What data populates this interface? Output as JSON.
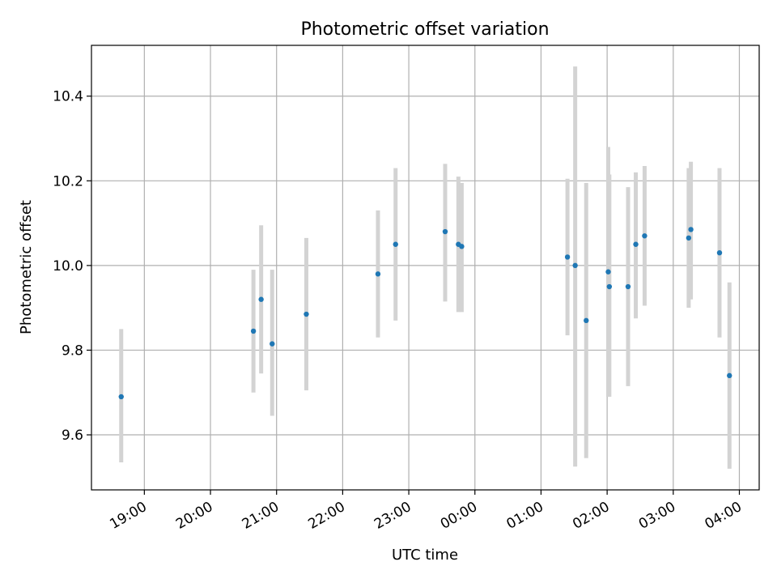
{
  "colors": {
    "point": "#1f77b4",
    "errorbar": "#d3d3d3",
    "grid": "#b0b0b0",
    "axis": "#000000"
  },
  "chart_data": {
    "type": "scatter",
    "title": "Photometric offset variation",
    "xlabel": "UTC time",
    "ylabel": "Photometric offset",
    "grid": true,
    "legend": "none",
    "x_axis": {
      "kind": "time",
      "min": "18:12",
      "max": "04:18",
      "ticks": [
        "19:00",
        "20:00",
        "21:00",
        "22:00",
        "23:00",
        "00:00",
        "01:00",
        "02:00",
        "03:00",
        "04:00"
      ]
    },
    "y_axis": {
      "min": 9.47,
      "max": 10.52,
      "ticks": [
        "9.6",
        "9.8",
        "10.0",
        "10.2",
        "10.4"
      ]
    },
    "points": [
      {
        "t": "18:39",
        "y": 9.69,
        "lo": 9.535,
        "hi": 9.85
      },
      {
        "t": "20:39",
        "y": 9.845,
        "lo": 9.7,
        "hi": 9.99
      },
      {
        "t": "20:46",
        "y": 9.92,
        "lo": 9.745,
        "hi": 10.095
      },
      {
        "t": "20:56",
        "y": 9.815,
        "lo": 9.645,
        "hi": 9.99
      },
      {
        "t": "21:27",
        "y": 9.885,
        "lo": 9.705,
        "hi": 10.065
      },
      {
        "t": "22:32",
        "y": 9.98,
        "lo": 9.83,
        "hi": 10.13
      },
      {
        "t": "22:48",
        "y": 10.05,
        "lo": 9.87,
        "hi": 10.23
      },
      {
        "t": "23:33",
        "y": 10.08,
        "lo": 9.915,
        "hi": 10.24
      },
      {
        "t": "23:45",
        "y": 10.05,
        "lo": 9.89,
        "hi": 10.21
      },
      {
        "t": "23:48",
        "y": 10.045,
        "lo": 9.89,
        "hi": 10.195
      },
      {
        "t": "01:24",
        "y": 10.02,
        "lo": 9.835,
        "hi": 10.205
      },
      {
        "t": "01:31",
        "y": 10.0,
        "lo": 9.525,
        "hi": 10.47
      },
      {
        "t": "01:41",
        "y": 9.87,
        "lo": 9.545,
        "hi": 10.195
      },
      {
        "t": "02:01",
        "y": 9.985,
        "lo": 9.69,
        "hi": 10.28
      },
      {
        "t": "02:02",
        "y": 9.95,
        "lo": 9.69,
        "hi": 10.215
      },
      {
        "t": "02:19",
        "y": 9.95,
        "lo": 9.715,
        "hi": 10.185
      },
      {
        "t": "02:26",
        "y": 10.05,
        "lo": 9.875,
        "hi": 10.22
      },
      {
        "t": "02:34",
        "y": 10.07,
        "lo": 9.905,
        "hi": 10.235
      },
      {
        "t": "03:14",
        "y": 10.065,
        "lo": 9.9,
        "hi": 10.23
      },
      {
        "t": "03:16",
        "y": 10.085,
        "lo": 9.92,
        "hi": 10.245
      },
      {
        "t": "03:42",
        "y": 10.03,
        "lo": 9.83,
        "hi": 10.23
      },
      {
        "t": "03:51",
        "y": 9.74,
        "lo": 9.52,
        "hi": 9.96
      }
    ]
  }
}
